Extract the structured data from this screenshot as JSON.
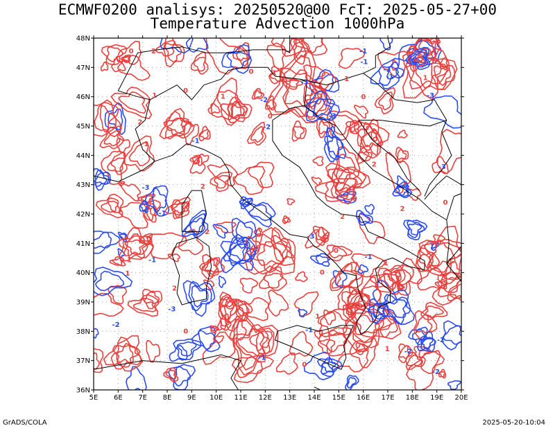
{
  "header": {
    "title_line1": "ECMWF0200 analisys: 20250520@00 FcT: 2025-05-27+00",
    "title_line2": "Temperature Advection 1000hPa"
  },
  "map": {
    "lon_labels": [
      "5E",
      "6E",
      "7E",
      "8E",
      "9E",
      "10E",
      "11E",
      "12E",
      "13E",
      "14E",
      "15E",
      "16E",
      "17E",
      "18E",
      "19E",
      "20E"
    ],
    "lat_labels": [
      "48N",
      "47N",
      "46N",
      "45N",
      "44N",
      "43N",
      "42N",
      "41N",
      "40N",
      "39N",
      "38N",
      "37N",
      "36N"
    ],
    "lon_range": [
      5,
      20
    ],
    "lat_range": [
      36,
      48
    ],
    "colors": {
      "positive": "#e8403c",
      "negative": "#2a4bf0",
      "coast": "#000000",
      "grid": "#a0a0a0"
    },
    "contour_labels": [
      "1",
      "-1",
      "2",
      "-2",
      "-3",
      "0"
    ]
  },
  "footer": {
    "left": "GrADS/COLA",
    "right": "2025-05-20-10:04"
  }
}
